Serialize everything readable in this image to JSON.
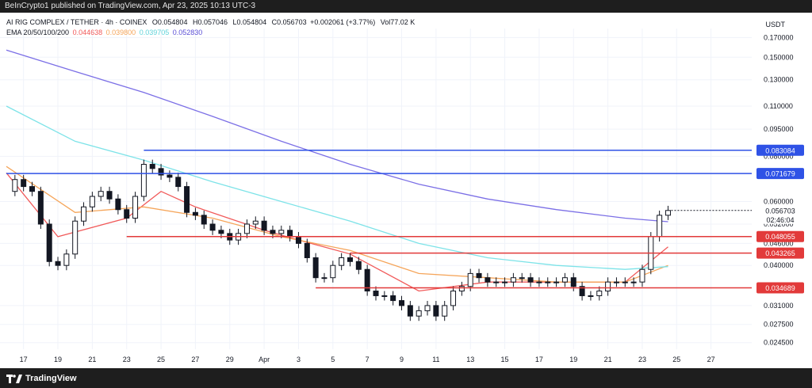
{
  "header": {
    "publish_text": "BeInCrypto1 published on TradingView.com, Apr 23, 2025 10:13 UTC-3"
  },
  "footer": {
    "brand": "TradingView"
  },
  "legend": {
    "symbol": "AI RIG COMPLEX / TETHER · 4h · COINEX",
    "o_label": "O",
    "o": "0.054804",
    "h_label": "H",
    "h": "0.057046",
    "l_label": "L",
    "l": "0.054804",
    "c_label": "C",
    "c": "0.056703",
    "change": "+0.002061 (+3.77%)",
    "vol_label": "Vol",
    "vol": "77.02 K",
    "ema_label": "EMA 20/50/100/200",
    "ema20": "0.044638",
    "ema50": "0.039800",
    "ema100": "0.039705",
    "ema200": "0.052830"
  },
  "colors": {
    "ema20": "#f15a5a",
    "ema50": "#f5a55a",
    "ema100": "#7de3e8",
    "ema200": "#7b6fe6",
    "resistance": "#2f52e6",
    "support": "#e23a3a",
    "candle": "#131722",
    "price_badge": "#131722"
  },
  "chart_data": {
    "type": "candlestick",
    "unit": "USDT",
    "y_scale": "log",
    "ylim": [
      0.0235,
      0.18
    ],
    "y_ticks": [
      "0.170000",
      "0.150000",
      "0.130000",
      "0.110000",
      "0.095000",
      "0.080000",
      "0.060000",
      "0.052000",
      "0.046000",
      "0.040000",
      "0.031000",
      "0.027500",
      "0.024500"
    ],
    "x_ticks": [
      "17",
      "19",
      "21",
      "23",
      "25",
      "27",
      "29",
      "Apr",
      "3",
      "5",
      "7",
      "9",
      "11",
      "13",
      "15",
      "17",
      "19",
      "21",
      "23",
      "25",
      "27"
    ],
    "x_range": [
      "2025-03-16",
      "2025-04-28"
    ],
    "current_price": "0.056703",
    "countdown": "02:46:04",
    "horizontal_levels": [
      {
        "value": 0.083084,
        "label": "0.083084",
        "kind": "resistance",
        "from": "2025-03-24"
      },
      {
        "value": 0.071679,
        "label": "0.071679",
        "kind": "resistance",
        "from": "2025-03-16"
      },
      {
        "value": 0.048055,
        "label": "0.048055",
        "kind": "support",
        "from": "2025-03-23"
      },
      {
        "value": 0.043265,
        "label": "0.043265",
        "kind": "support",
        "from": "2025-04-05"
      },
      {
        "value": 0.034689,
        "label": "0.034689",
        "kind": "support",
        "from": "2025-04-03"
      }
    ],
    "price_path": [
      {
        "date": "2025-03-16",
        "close": 0.064
      },
      {
        "date": "2025-03-16.5",
        "close": 0.069
      },
      {
        "date": "2025-03-17",
        "close": 0.066
      },
      {
        "date": "2025-03-17.5",
        "close": 0.064
      },
      {
        "date": "2025-03-18",
        "close": 0.052
      },
      {
        "date": "2025-03-18.5",
        "close": 0.041
      },
      {
        "date": "2025-03-19",
        "close": 0.04
      },
      {
        "date": "2025-03-19.5",
        "close": 0.043
      },
      {
        "date": "2025-03-20",
        "close": 0.053
      },
      {
        "date": "2025-03-20.5",
        "close": 0.058
      },
      {
        "date": "2025-03-21",
        "close": 0.062
      },
      {
        "date": "2025-03-21.5",
        "close": 0.064
      },
      {
        "date": "2025-03-22",
        "close": 0.061
      },
      {
        "date": "2025-03-22.5",
        "close": 0.057
      },
      {
        "date": "2025-03-23",
        "close": 0.054
      },
      {
        "date": "2025-03-23.5",
        "close": 0.062
      },
      {
        "date": "2025-03-24",
        "close": 0.076
      },
      {
        "date": "2025-03-24.5",
        "close": 0.074
      },
      {
        "date": "2025-03-25",
        "close": 0.071
      },
      {
        "date": "2025-03-25.5",
        "close": 0.07
      },
      {
        "date": "2025-03-26",
        "close": 0.066
      },
      {
        "date": "2025-03-26.5",
        "close": 0.056
      },
      {
        "date": "2025-03-27",
        "close": 0.055
      },
      {
        "date": "2025-03-27.5",
        "close": 0.052
      },
      {
        "date": "2025-03-28",
        "close": 0.05
      },
      {
        "date": "2025-03-28.5",
        "close": 0.049
      },
      {
        "date": "2025-03-29",
        "close": 0.047
      },
      {
        "date": "2025-03-29.5",
        "close": 0.049
      },
      {
        "date": "2025-03-30",
        "close": 0.052
      },
      {
        "date": "2025-03-30.5",
        "close": 0.053
      },
      {
        "date": "2025-03-31",
        "close": 0.05
      },
      {
        "date": "2025-03-31.5",
        "close": 0.049
      },
      {
        "date": "2025-04-01",
        "close": 0.05
      },
      {
        "date": "2025-04-01.5",
        "close": 0.048
      },
      {
        "date": "2025-04-02",
        "close": 0.046
      },
      {
        "date": "2025-04-02.5",
        "close": 0.042
      },
      {
        "date": "2025-04-03",
        "close": 0.037
      },
      {
        "date": "2025-04-03.5",
        "close": 0.037
      },
      {
        "date": "2025-04-04",
        "close": 0.04
      },
      {
        "date": "2025-04-04.5",
        "close": 0.042
      },
      {
        "date": "2025-04-05",
        "close": 0.041
      },
      {
        "date": "2025-04-05.5",
        "close": 0.039
      },
      {
        "date": "2025-04-06",
        "close": 0.034
      },
      {
        "date": "2025-04-06.5",
        "close": 0.033
      },
      {
        "date": "2025-04-07",
        "close": 0.033
      },
      {
        "date": "2025-04-07.5",
        "close": 0.032
      },
      {
        "date": "2025-04-08",
        "close": 0.031
      },
      {
        "date": "2025-04-08.5",
        "close": 0.029
      },
      {
        "date": "2025-04-09",
        "close": 0.03
      },
      {
        "date": "2025-04-09.5",
        "close": 0.031
      },
      {
        "date": "2025-04-10",
        "close": 0.029
      },
      {
        "date": "2025-04-10.5",
        "close": 0.031
      },
      {
        "date": "2025-04-11",
        "close": 0.034
      },
      {
        "date": "2025-04-11.5",
        "close": 0.035
      },
      {
        "date": "2025-04-12",
        "close": 0.038
      },
      {
        "date": "2025-04-12.5",
        "close": 0.037
      },
      {
        "date": "2025-04-13",
        "close": 0.036
      },
      {
        "date": "2025-04-13.5",
        "close": 0.036
      },
      {
        "date": "2025-04-14",
        "close": 0.036
      },
      {
        "date": "2025-04-14.5",
        "close": 0.037
      },
      {
        "date": "2025-04-15",
        "close": 0.037
      },
      {
        "date": "2025-04-15.5",
        "close": 0.036
      },
      {
        "date": "2025-04-16",
        "close": 0.036
      },
      {
        "date": "2025-04-16.5",
        "close": 0.036
      },
      {
        "date": "2025-04-17",
        "close": 0.036
      },
      {
        "date": "2025-04-17.5",
        "close": 0.037
      },
      {
        "date": "2025-04-18",
        "close": 0.035
      },
      {
        "date": "2025-04-18.5",
        "close": 0.033
      },
      {
        "date": "2025-04-19",
        "close": 0.033
      },
      {
        "date": "2025-04-19.5",
        "close": 0.034
      },
      {
        "date": "2025-04-20",
        "close": 0.036
      },
      {
        "date": "2025-04-20.5",
        "close": 0.036
      },
      {
        "date": "2025-04-21",
        "close": 0.036
      },
      {
        "date": "2025-04-21.5",
        "close": 0.036
      },
      {
        "date": "2025-04-22",
        "close": 0.039
      },
      {
        "date": "2025-04-22.5",
        "close": 0.048
      },
      {
        "date": "2025-04-23",
        "close": 0.055
      },
      {
        "date": "2025-04-23.5",
        "close": 0.0567
      }
    ],
    "ema_series": [
      {
        "name": "EMA 20",
        "points": [
          [
            "2025-03-16",
            0.072
          ],
          [
            "2025-03-19",
            0.048
          ],
          [
            "2025-03-23",
            0.054
          ],
          [
            "2025-03-25",
            0.064
          ],
          [
            "2025-03-27",
            0.058
          ],
          [
            "2025-03-31",
            0.05
          ],
          [
            "2025-04-02",
            0.047
          ],
          [
            "2025-04-05",
            0.043
          ],
          [
            "2025-04-09",
            0.034
          ],
          [
            "2025-04-13",
            0.036
          ],
          [
            "2025-04-17",
            0.036
          ],
          [
            "2025-04-21",
            0.036
          ],
          [
            "2025-04-23.5",
            0.045
          ]
        ]
      },
      {
        "name": "EMA 50",
        "points": [
          [
            "2025-03-16",
            0.075
          ],
          [
            "2025-03-20",
            0.056
          ],
          [
            "2025-03-24",
            0.058
          ],
          [
            "2025-03-28",
            0.054
          ],
          [
            "2025-04-01",
            0.048
          ],
          [
            "2025-04-05",
            0.044
          ],
          [
            "2025-04-09",
            0.038
          ],
          [
            "2025-04-13",
            0.037
          ],
          [
            "2025-04-17",
            0.036
          ],
          [
            "2025-04-21",
            0.036
          ],
          [
            "2025-04-23.5",
            0.04
          ]
        ]
      },
      {
        "name": "EMA 100",
        "points": [
          [
            "2025-03-16",
            0.11
          ],
          [
            "2025-03-20",
            0.088
          ],
          [
            "2025-03-24",
            0.078
          ],
          [
            "2025-03-28",
            0.068
          ],
          [
            "2025-04-01",
            0.06
          ],
          [
            "2025-04-05",
            0.053
          ],
          [
            "2025-04-09",
            0.046
          ],
          [
            "2025-04-13",
            0.042
          ],
          [
            "2025-04-17",
            0.04
          ],
          [
            "2025-04-21",
            0.039
          ],
          [
            "2025-04-23.5",
            0.0397
          ]
        ]
      },
      {
        "name": "EMA 200",
        "points": [
          [
            "2025-03-16",
            0.157
          ],
          [
            "2025-03-20",
            0.137
          ],
          [
            "2025-03-24",
            0.12
          ],
          [
            "2025-03-28",
            0.103
          ],
          [
            "2025-04-01",
            0.088
          ],
          [
            "2025-04-05",
            0.076
          ],
          [
            "2025-04-09",
            0.067
          ],
          [
            "2025-04-13",
            0.061
          ],
          [
            "2025-04-17",
            0.057
          ],
          [
            "2025-04-21",
            0.054
          ],
          [
            "2025-04-23.5",
            0.0528
          ]
        ]
      }
    ]
  }
}
